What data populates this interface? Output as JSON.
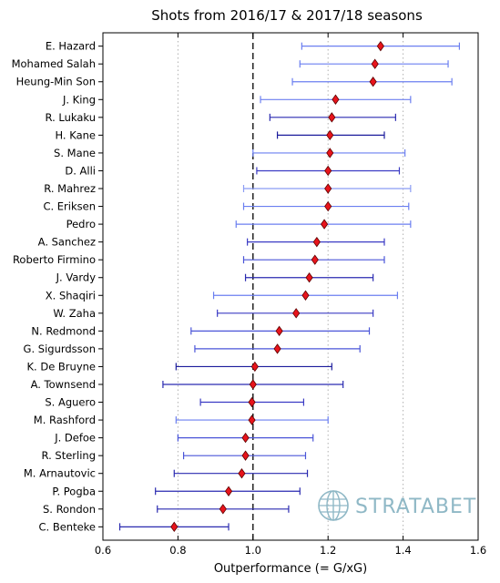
{
  "chart_data": {
    "type": "errorbar-dot",
    "title": "Shots from 2016/17 & 2017/18 seasons",
    "xlabel": "Outperformance (= G/xG)",
    "xlim": [
      0.6,
      1.6
    ],
    "xticks": [
      0.6,
      0.8,
      1.0,
      1.2,
      1.4,
      1.6
    ],
    "xtick_labels": [
      "0.6",
      "0.8",
      "1.0",
      "1.2",
      "1.4",
      "1.6"
    ],
    "reference_line": 1.0,
    "grid_lines": [
      0.8,
      1.2,
      1.4
    ],
    "marker_color": "#e8141c",
    "players": [
      {
        "name": "E. Hazard",
        "value": 1.34,
        "low": 1.13,
        "high": 1.55,
        "color": "#6b7ff0"
      },
      {
        "name": "Mohamed Salah",
        "value": 1.325,
        "low": 1.125,
        "high": 1.52,
        "color": "#6b7ff0"
      },
      {
        "name": "Heung-Min Son",
        "value": 1.32,
        "low": 1.105,
        "high": 1.53,
        "color": "#6b7ff0"
      },
      {
        "name": "J. King",
        "value": 1.22,
        "low": 1.02,
        "high": 1.42,
        "color": "#6b7ff0"
      },
      {
        "name": "R. Lukaku",
        "value": 1.21,
        "low": 1.045,
        "high": 1.38,
        "color": "#2a2ab0"
      },
      {
        "name": "H. Kane",
        "value": 1.205,
        "low": 1.065,
        "high": 1.35,
        "color": "#1c1c9c"
      },
      {
        "name": "S. Mane",
        "value": 1.205,
        "low": 1.0,
        "high": 1.405,
        "color": "#6b7ff0"
      },
      {
        "name": "D. Alli",
        "value": 1.2,
        "low": 1.01,
        "high": 1.39,
        "color": "#3b3bc4"
      },
      {
        "name": "R. Mahrez",
        "value": 1.2,
        "low": 0.975,
        "high": 1.42,
        "color": "#8b9cf4"
      },
      {
        "name": "C. Eriksen",
        "value": 1.2,
        "low": 0.975,
        "high": 1.415,
        "color": "#6b7ff0"
      },
      {
        "name": "Pedro",
        "value": 1.19,
        "low": 0.955,
        "high": 1.42,
        "color": "#6b7ff0"
      },
      {
        "name": "A. Sanchez",
        "value": 1.17,
        "low": 0.985,
        "high": 1.35,
        "color": "#3b3bc4"
      },
      {
        "name": "Roberto Firmino",
        "value": 1.165,
        "low": 0.975,
        "high": 1.35,
        "color": "#4a55d8"
      },
      {
        "name": "J. Vardy",
        "value": 1.15,
        "low": 0.98,
        "high": 1.32,
        "color": "#2a2ab0"
      },
      {
        "name": "X. Shaqiri",
        "value": 1.14,
        "low": 0.895,
        "high": 1.385,
        "color": "#6b7ff0"
      },
      {
        "name": "W. Zaha",
        "value": 1.115,
        "low": 0.905,
        "high": 1.32,
        "color": "#3b3bc4"
      },
      {
        "name": "N. Redmond",
        "value": 1.07,
        "low": 0.835,
        "high": 1.31,
        "color": "#4a55d8"
      },
      {
        "name": "G. Sigurdsson",
        "value": 1.065,
        "low": 0.845,
        "high": 1.285,
        "color": "#4a55d8"
      },
      {
        "name": "K. De Bruyne",
        "value": 1.005,
        "low": 0.795,
        "high": 1.21,
        "color": "#1c1c9c"
      },
      {
        "name": "A. Townsend",
        "value": 1.0,
        "low": 0.76,
        "high": 1.24,
        "color": "#2a2ab0"
      },
      {
        "name": "S. Aguero",
        "value": 0.997,
        "low": 0.86,
        "high": 1.135,
        "color": "#3b3bc4"
      },
      {
        "name": "M. Rashford",
        "value": 0.997,
        "low": 0.795,
        "high": 1.2,
        "color": "#6b7ff0"
      },
      {
        "name": "J. Defoe",
        "value": 0.98,
        "low": 0.8,
        "high": 1.16,
        "color": "#4a55d8"
      },
      {
        "name": "R. Sterling",
        "value": 0.98,
        "low": 0.815,
        "high": 1.14,
        "color": "#4a55d8"
      },
      {
        "name": "M. Arnautovic",
        "value": 0.97,
        "low": 0.79,
        "high": 1.145,
        "color": "#2a2ab0"
      },
      {
        "name": "P. Pogba",
        "value": 0.935,
        "low": 0.74,
        "high": 1.125,
        "color": "#2a2ab0"
      },
      {
        "name": "S. Rondon",
        "value": 0.92,
        "low": 0.745,
        "high": 1.095,
        "color": "#2a2ab0"
      },
      {
        "name": "C. Benteke",
        "value": 0.79,
        "low": 0.645,
        "high": 0.935,
        "color": "#2a2ab0"
      }
    ]
  },
  "watermark": {
    "text": "STRATABET",
    "icon": "globe-icon",
    "color": "#8fb8c6"
  }
}
